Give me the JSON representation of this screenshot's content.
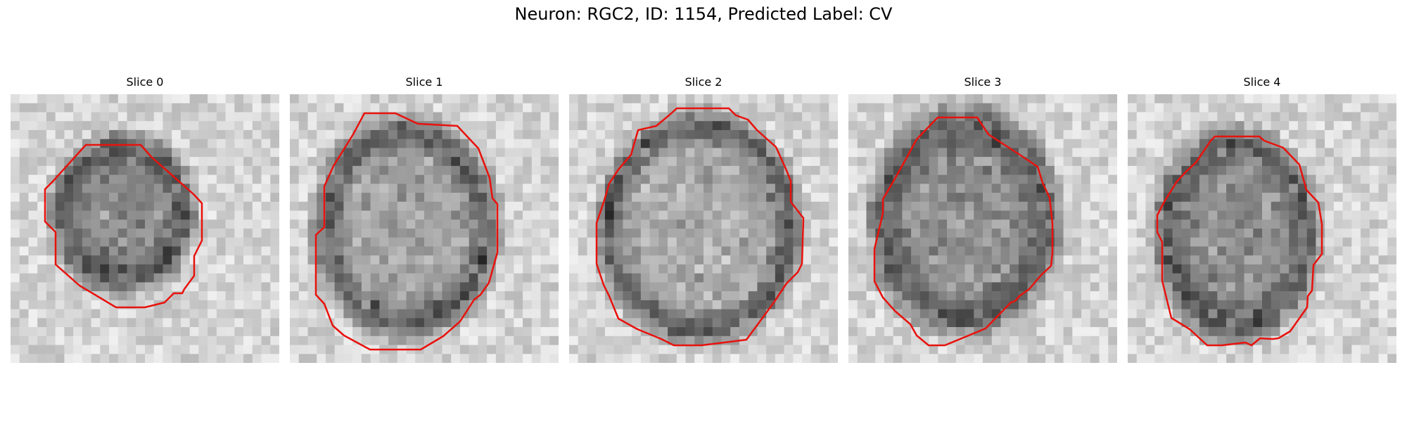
{
  "figure": {
    "title": "Neuron: RGC2, ID: 1154, Predicted Label: CV"
  },
  "panels": [
    {
      "title": "Slice 0"
    },
    {
      "title": "Slice 1"
    },
    {
      "title": "Slice 2"
    },
    {
      "title": "Slice 3"
    },
    {
      "title": "Slice 4"
    }
  ],
  "colors": {
    "contour": "#e8120d",
    "background": "#ffffff"
  }
}
